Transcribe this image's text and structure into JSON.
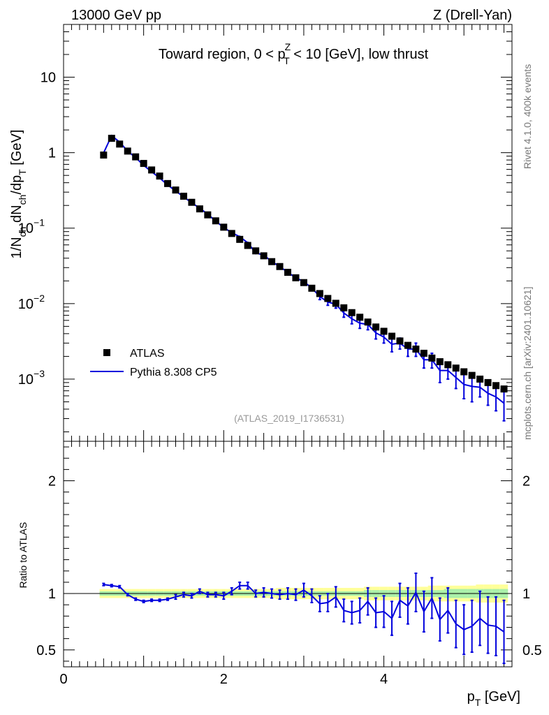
{
  "header": {
    "left": "13000 GeV pp",
    "right": "Z (Drell-Yan)"
  },
  "side_labels": {
    "rivet": "Rivet 4.1.0,  400k events",
    "mcplots": "mcplots.cern.ch [arXiv:2401.10621]"
  },
  "colors": {
    "data": "#000000",
    "mc": "#0000dd",
    "band_inner": "#aaf0aa",
    "band_outer": "#ffff99",
    "watermark": "#999999"
  },
  "chart_data": [
    {
      "type": "line",
      "title": "Toward region, 0 < p_T^Z < 10 [GeV], low thrust",
      "title_parts": {
        "pre": "Toward region, 0 < p",
        "sup": "Z",
        "sub": "T",
        "post": " < 10 [GeV], low thrust"
      },
      "ylabel": "1/N_ch dN_ch/dp_T [GeV]",
      "ylabel_parts": {
        "a": "1/N",
        "a_sub": "ch",
        "b": " dN",
        "b_sub": "ch",
        "c": "/dp",
        "c_sub": "T",
        "d": " [GeV]"
      },
      "yscale": "log",
      "ylim": [
        0.00015,
        50
      ],
      "xlim": [
        0,
        5.6
      ],
      "y_ticks": [
        {
          "value": 10,
          "base": "10",
          "exp": ""
        },
        {
          "value": 1,
          "base": "1",
          "exp": ""
        },
        {
          "value": 0.1,
          "base": "10",
          "exp": "−1"
        },
        {
          "value": 0.01,
          "base": "10",
          "exp": "−2"
        },
        {
          "value": 0.001,
          "base": "10",
          "exp": "−3"
        }
      ],
      "analysis_label": "(ATLAS_2019_I1736531)",
      "legend": {
        "position": "bottom-left",
        "entries": [
          "ATLAS",
          "Pythia 8.308 CP5"
        ]
      },
      "x": [
        0.5,
        0.6,
        0.7,
        0.8,
        0.9,
        1.0,
        1.1,
        1.2,
        1.3,
        1.4,
        1.5,
        1.6,
        1.7,
        1.8,
        1.9,
        2.0,
        2.1,
        2.2,
        2.3,
        2.4,
        2.5,
        2.6,
        2.7,
        2.8,
        2.9,
        3.0,
        3.1,
        3.2,
        3.3,
        3.4,
        3.5,
        3.6,
        3.7,
        3.8,
        3.9,
        4.0,
        4.1,
        4.2,
        4.3,
        4.4,
        4.5,
        4.6,
        4.7,
        4.8,
        4.9,
        5.0,
        5.1,
        5.2,
        5.3,
        5.4,
        5.5
      ],
      "series": [
        {
          "name": "ATLAS",
          "style": "markers",
          "values": [
            0.93,
            1.55,
            1.3,
            1.05,
            0.88,
            0.72,
            0.59,
            0.49,
            0.39,
            0.32,
            0.265,
            0.22,
            0.18,
            0.15,
            0.125,
            0.103,
            0.085,
            0.071,
            0.059,
            0.05,
            0.043,
            0.036,
            0.031,
            0.026,
            0.022,
            0.019,
            0.016,
            0.0136,
            0.0117,
            0.0101,
            0.0088,
            0.0076,
            0.0066,
            0.0057,
            0.0049,
            0.0043,
            0.0037,
            0.0032,
            0.0028,
            0.0025,
            0.0022,
            0.0019,
            0.0017,
            0.00155,
            0.0014,
            0.00125,
            0.00112,
            0.001,
            0.0009,
            0.00082,
            0.00074
          ]
        },
        {
          "name": "Pythia 8.308 CP5",
          "style": "line",
          "values": [
            0.99,
            1.68,
            1.38,
            1.05,
            0.86,
            0.68,
            0.558,
            0.462,
            0.374,
            0.31,
            0.26,
            0.217,
            0.184,
            0.153,
            0.124,
            0.102,
            0.087,
            0.077,
            0.064,
            0.047,
            0.044,
            0.036,
            0.031,
            0.026,
            0.022,
            0.0196,
            0.0161,
            0.0124,
            0.0105,
            0.0098,
            0.0075,
            0.0063,
            0.0055,
            0.0053,
            0.0041,
            0.0036,
            0.0029,
            0.003,
            0.0025,
            0.0025,
            0.0018,
            0.0018,
            0.0013,
            0.0013,
            0.00105,
            0.00085,
            0.0008,
            0.00078,
            0.00065,
            0.00058,
            0.00048
          ]
        }
      ],
      "mc_error": [
        0.03,
        0.05,
        0.04,
        0.03,
        0.025,
        0.02,
        0.017,
        0.014,
        0.011,
        0.009,
        0.008,
        0.006,
        0.006,
        0.005,
        0.004,
        0.0035,
        0.003,
        0.0028,
        0.0024,
        0.002,
        0.0018,
        0.0016,
        0.0014,
        0.0012,
        0.0011,
        0.0012,
        0.0011,
        0.0011,
        0.001,
        0.0011,
        0.0009,
        0.0009,
        0.0008,
        0.0008,
        0.0007,
        0.0006,
        0.0006,
        0.0005,
        0.0005,
        0.0005,
        0.0004,
        0.0004,
        0.0004,
        0.0003,
        0.0003,
        0.0003,
        0.0003,
        0.0002,
        0.0002,
        0.0002,
        0.0002
      ]
    },
    {
      "type": "line",
      "ylabel": "Ratio to ATLAS",
      "xlabel": "p_T [GeV]",
      "xlabel_parts": {
        "a": "p",
        "sub": "T",
        "b": " [GeV]"
      },
      "xlim": [
        0,
        5.6
      ],
      "ylim": [
        0.35,
        2.35
      ],
      "x_ticks": [
        0,
        2,
        4
      ],
      "y_ticks": [
        0.5,
        1,
        2
      ],
      "reference": 1,
      "series": [
        {
          "name": "Pythia 8.308 CP5",
          "values": [
            1.08,
            1.07,
            1.06,
            0.99,
            0.95,
            0.93,
            0.94,
            0.94,
            0.95,
            0.97,
            0.99,
            0.98,
            1.02,
            0.99,
            0.99,
            0.98,
            1.02,
            1.07,
            1.07,
            1.0,
            1.01,
            1.0,
            0.99,
            1.0,
            0.99,
            1.03,
            0.98,
            0.91,
            0.92,
            0.97,
            0.85,
            0.83,
            0.85,
            0.93,
            0.83,
            0.84,
            0.78,
            0.94,
            0.89,
            1.01,
            0.84,
            0.96,
            0.77,
            0.85,
            0.73,
            0.68,
            0.71,
            0.78,
            0.72,
            0.71,
            0.66
          ]
        }
      ],
      "ratio_error": [
        0.01,
        0.01,
        0.01,
        0.01,
        0.01,
        0.01,
        0.01,
        0.01,
        0.01,
        0.02,
        0.02,
        0.02,
        0.02,
        0.02,
        0.02,
        0.03,
        0.03,
        0.03,
        0.03,
        0.03,
        0.04,
        0.04,
        0.04,
        0.05,
        0.05,
        0.06,
        0.06,
        0.07,
        0.08,
        0.09,
        0.1,
        0.1,
        0.11,
        0.12,
        0.13,
        0.14,
        0.15,
        0.15,
        0.16,
        0.17,
        0.18,
        0.18,
        0.19,
        0.2,
        0.21,
        0.22,
        0.23,
        0.24,
        0.25,
        0.26,
        0.28
      ],
      "band_inner": [
        0.02,
        0.02,
        0.02,
        0.02,
        0.02,
        0.02,
        0.02,
        0.02,
        0.02,
        0.02,
        0.02,
        0.02,
        0.02,
        0.02,
        0.02,
        0.02,
        0.02,
        0.02,
        0.02,
        0.02,
        0.02,
        0.02,
        0.02,
        0.02,
        0.02,
        0.02,
        0.02,
        0.02,
        0.02,
        0.02,
        0.02,
        0.02,
        0.02,
        0.03,
        0.03,
        0.03,
        0.03,
        0.03,
        0.03,
        0.03,
        0.03,
        0.03,
        0.03,
        0.04,
        0.04,
        0.04,
        0.04,
        0.04,
        0.04,
        0.04,
        0.04
      ],
      "band_outer": [
        0.04,
        0.04,
        0.04,
        0.04,
        0.04,
        0.04,
        0.04,
        0.04,
        0.04,
        0.04,
        0.04,
        0.04,
        0.04,
        0.04,
        0.04,
        0.04,
        0.04,
        0.04,
        0.04,
        0.04,
        0.04,
        0.04,
        0.05,
        0.05,
        0.05,
        0.05,
        0.05,
        0.05,
        0.05,
        0.05,
        0.05,
        0.05,
        0.05,
        0.06,
        0.06,
        0.06,
        0.06,
        0.06,
        0.06,
        0.06,
        0.06,
        0.07,
        0.07,
        0.07,
        0.07,
        0.07,
        0.07,
        0.08,
        0.08,
        0.08,
        0.08
      ]
    }
  ]
}
